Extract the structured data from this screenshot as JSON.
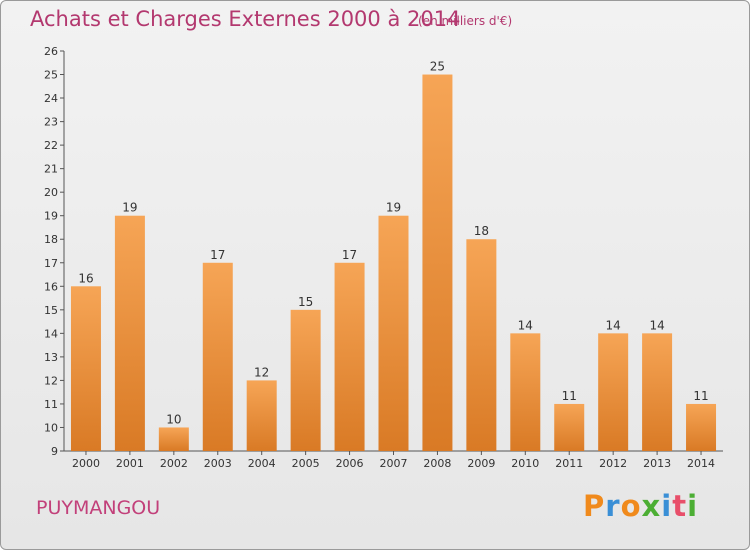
{
  "chart_data": {
    "type": "bar",
    "title": "Achats et Charges Externes 2000 à 2014",
    "subtitle": "(en milliers d'€)",
    "categories": [
      "2000",
      "2001",
      "2002",
      "2003",
      "2004",
      "2005",
      "2006",
      "2007",
      "2008",
      "2009",
      "2010",
      "2011",
      "2012",
      "2013",
      "2014"
    ],
    "values": [
      16,
      19,
      10,
      17,
      12,
      15,
      17,
      19,
      25,
      18,
      14,
      11,
      14,
      14,
      11
    ],
    "ylim": [
      9,
      26
    ],
    "yticks": [
      9,
      10,
      11,
      12,
      13,
      14,
      15,
      16,
      17,
      18,
      19,
      20,
      21,
      22,
      23,
      24,
      25,
      26
    ],
    "xlabel": "",
    "ylabel": "",
    "grid": false,
    "bar_color_top": "#f6a556",
    "bar_color_bottom": "#d97a25"
  },
  "footer": {
    "town": "PUYMANGOU",
    "logo_letters": [
      {
        "ch": "P",
        "color": "#f08a1c"
      },
      {
        "ch": "r",
        "color": "#3a8fd6"
      },
      {
        "ch": "o",
        "color": "#f08a1c"
      },
      {
        "ch": "x",
        "color": "#4cae34"
      },
      {
        "ch": "i",
        "color": "#3a8fd6"
      },
      {
        "ch": "t",
        "color": "#e84f6a"
      },
      {
        "ch": "i",
        "color": "#4cae34"
      }
    ]
  }
}
